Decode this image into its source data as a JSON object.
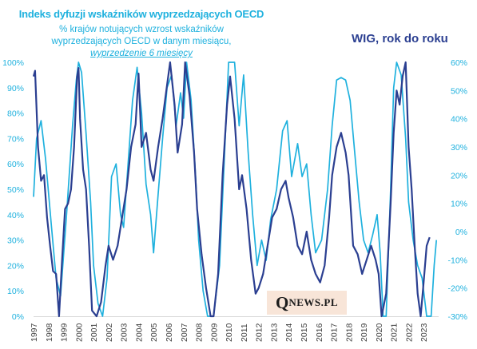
{
  "header": {
    "title_left": "Indeks dyfuzji wskaźników wyprzedzających OECD",
    "subtitle_line1": "% krajów notujących wzrost wskaźników",
    "subtitle_line2": "wyprzedzających OECD w danym miesiącu,",
    "subtitle_line3": "wyprzedzenie  6 miesięcy",
    "title_right": "WIG, rok do roku"
  },
  "watermark": {
    "big": "Q",
    "small": "NEWS.PL"
  },
  "colors": {
    "oecd": "#1fb1de",
    "wig": "#2b3f91",
    "left_axis": "#1fb1de",
    "right_axis": "#1fb1de",
    "watermark_bg": "#f8e5d8"
  },
  "chart_data": {
    "type": "line",
    "xlim": [
      1997.0,
      2024.0
    ],
    "ylim_left": [
      0,
      100
    ],
    "ylim_right": [
      -30,
      60
    ],
    "x_ticks": [
      "1997",
      "1998",
      "1999",
      "2000",
      "2001",
      "2002",
      "2003",
      "2004",
      "2005",
      "2006",
      "2007",
      "2008",
      "2009",
      "2010",
      "2011",
      "2012",
      "2013",
      "2014",
      "2015",
      "2016",
      "2017",
      "2018",
      "2019",
      "2020",
      "2021",
      "2022",
      "2023"
    ],
    "y_left_ticks": [
      "0%",
      "10%",
      "20%",
      "30%",
      "40%",
      "50%",
      "60%",
      "70%",
      "80%",
      "90%",
      "100%"
    ],
    "y_right_ticks": [
      "-30%",
      "-20%",
      "-10%",
      "0%",
      "10%",
      "20%",
      "30%",
      "40%",
      "50%",
      "60%"
    ],
    "grid": false,
    "series": [
      {
        "key": "oecd",
        "axis": "left",
        "points": [
          [
            1997.0,
            47
          ],
          [
            1997.2,
            70
          ],
          [
            1997.5,
            77
          ],
          [
            1997.8,
            62
          ],
          [
            1998.2,
            35
          ],
          [
            1998.5,
            15
          ],
          [
            1998.8,
            8
          ],
          [
            1999.2,
            40
          ],
          [
            1999.6,
            75
          ],
          [
            1999.85,
            93
          ],
          [
            2000.0,
            100
          ],
          [
            2000.2,
            96
          ],
          [
            2000.5,
            72
          ],
          [
            2000.8,
            45
          ],
          [
            2001.0,
            20
          ],
          [
            2001.3,
            5
          ],
          [
            2001.6,
            0
          ],
          [
            2001.9,
            15
          ],
          [
            2002.2,
            55
          ],
          [
            2002.5,
            60
          ],
          [
            2002.8,
            40
          ],
          [
            2003.0,
            35
          ],
          [
            2003.3,
            60
          ],
          [
            2003.6,
            85
          ],
          [
            2003.9,
            98
          ],
          [
            2004.2,
            80
          ],
          [
            2004.5,
            52
          ],
          [
            2004.8,
            40
          ],
          [
            2005.0,
            25
          ],
          [
            2005.3,
            48
          ],
          [
            2005.6,
            70
          ],
          [
            2005.9,
            90
          ],
          [
            2006.2,
            95
          ],
          [
            2006.5,
            75
          ],
          [
            2006.8,
            88
          ],
          [
            2007.0,
            78
          ],
          [
            2007.2,
            100
          ],
          [
            2007.5,
            85
          ],
          [
            2007.8,
            55
          ],
          [
            2008.0,
            30
          ],
          [
            2008.3,
            10
          ],
          [
            2008.6,
            0
          ],
          [
            2009.0,
            0
          ],
          [
            2009.4,
            20
          ],
          [
            2009.7,
            60
          ],
          [
            2010.0,
            100
          ],
          [
            2010.4,
            100
          ],
          [
            2010.7,
            75
          ],
          [
            2011.0,
            95
          ],
          [
            2011.3,
            65
          ],
          [
            2011.6,
            40
          ],
          [
            2011.9,
            20
          ],
          [
            2012.2,
            30
          ],
          [
            2012.5,
            22
          ],
          [
            2012.8,
            38
          ],
          [
            2013.2,
            50
          ],
          [
            2013.6,
            73
          ],
          [
            2013.9,
            77
          ],
          [
            2014.2,
            55
          ],
          [
            2014.6,
            68
          ],
          [
            2014.9,
            55
          ],
          [
            2015.2,
            60
          ],
          [
            2015.5,
            40
          ],
          [
            2015.8,
            25
          ],
          [
            2016.2,
            30
          ],
          [
            2016.6,
            50
          ],
          [
            2016.9,
            75
          ],
          [
            2017.2,
            93
          ],
          [
            2017.5,
            94
          ],
          [
            2017.8,
            93
          ],
          [
            2018.1,
            85
          ],
          [
            2018.4,
            65
          ],
          [
            2018.7,
            45
          ],
          [
            2019.0,
            30
          ],
          [
            2019.3,
            25
          ],
          [
            2019.6,
            32
          ],
          [
            2019.9,
            40
          ],
          [
            2020.1,
            25
          ],
          [
            2020.3,
            0
          ],
          [
            2020.5,
            0
          ],
          [
            2020.8,
            50
          ],
          [
            2021.0,
            90
          ],
          [
            2021.2,
            100
          ],
          [
            2021.5,
            95
          ],
          [
            2021.8,
            70
          ],
          [
            2022.0,
            45
          ],
          [
            2022.3,
            30
          ],
          [
            2022.6,
            20
          ],
          [
            2022.9,
            15
          ],
          [
            2023.2,
            0
          ],
          [
            2023.5,
            0
          ],
          [
            2023.7,
            20
          ],
          [
            2023.85,
            30
          ]
        ]
      },
      {
        "key": "wig",
        "axis": "right",
        "points": [
          [
            1997.0,
            55
          ],
          [
            1997.1,
            57
          ],
          [
            1997.3,
            30
          ],
          [
            1997.5,
            18
          ],
          [
            1997.7,
            20
          ],
          [
            1997.9,
            5
          ],
          [
            1998.1,
            -5
          ],
          [
            1998.3,
            -14
          ],
          [
            1998.5,
            -15
          ],
          [
            1998.7,
            -30
          ],
          [
            1998.9,
            -10
          ],
          [
            1999.1,
            8
          ],
          [
            1999.3,
            10
          ],
          [
            1999.5,
            15
          ],
          [
            1999.7,
            30
          ],
          [
            1999.9,
            55
          ],
          [
            2000.0,
            58
          ],
          [
            2000.1,
            40
          ],
          [
            2000.3,
            22
          ],
          [
            2000.5,
            15
          ],
          [
            2000.7,
            -5
          ],
          [
            2000.9,
            -28
          ],
          [
            2001.2,
            -30
          ],
          [
            2001.5,
            -25
          ],
          [
            2001.8,
            -12
          ],
          [
            2002.0,
            -5
          ],
          [
            2002.3,
            -10
          ],
          [
            2002.6,
            -5
          ],
          [
            2002.9,
            5
          ],
          [
            2003.2,
            15
          ],
          [
            2003.5,
            30
          ],
          [
            2003.8,
            38
          ],
          [
            2004.0,
            56
          ],
          [
            2004.2,
            30
          ],
          [
            2004.5,
            35
          ],
          [
            2004.8,
            22
          ],
          [
            2005.0,
            18
          ],
          [
            2005.3,
            30
          ],
          [
            2005.6,
            40
          ],
          [
            2005.9,
            52
          ],
          [
            2006.1,
            60
          ],
          [
            2006.4,
            45
          ],
          [
            2006.6,
            28
          ],
          [
            2006.9,
            38
          ],
          [
            2007.1,
            60
          ],
          [
            2007.4,
            48
          ],
          [
            2007.7,
            28
          ],
          [
            2007.9,
            8
          ],
          [
            2008.2,
            -8
          ],
          [
            2008.5,
            -20
          ],
          [
            2008.8,
            -30
          ],
          [
            2009.0,
            -30
          ],
          [
            2009.3,
            -15
          ],
          [
            2009.6,
            20
          ],
          [
            2009.9,
            45
          ],
          [
            2010.1,
            55
          ],
          [
            2010.4,
            40
          ],
          [
            2010.7,
            15
          ],
          [
            2010.9,
            20
          ],
          [
            2011.2,
            8
          ],
          [
            2011.5,
            -10
          ],
          [
            2011.8,
            -22
          ],
          [
            2012.0,
            -20
          ],
          [
            2012.3,
            -15
          ],
          [
            2012.6,
            -5
          ],
          [
            2012.9,
            5
          ],
          [
            2013.2,
            8
          ],
          [
            2013.5,
            15
          ],
          [
            2013.8,
            18
          ],
          [
            2014.0,
            12
          ],
          [
            2014.3,
            5
          ],
          [
            2014.6,
            -5
          ],
          [
            2014.9,
            -8
          ],
          [
            2015.2,
            0
          ],
          [
            2015.5,
            -10
          ],
          [
            2015.8,
            -15
          ],
          [
            2016.1,
            -18
          ],
          [
            2016.4,
            -12
          ],
          [
            2016.7,
            5
          ],
          [
            2016.9,
            20
          ],
          [
            2017.2,
            30
          ],
          [
            2017.5,
            35
          ],
          [
            2017.8,
            28
          ],
          [
            2018.0,
            20
          ],
          [
            2018.3,
            -5
          ],
          [
            2018.6,
            -8
          ],
          [
            2018.9,
            -15
          ],
          [
            2019.2,
            -10
          ],
          [
            2019.5,
            -5
          ],
          [
            2019.8,
            -10
          ],
          [
            2020.0,
            -15
          ],
          [
            2020.2,
            -30
          ],
          [
            2020.5,
            -22
          ],
          [
            2020.8,
            10
          ],
          [
            2021.0,
            35
          ],
          [
            2021.2,
            50
          ],
          [
            2021.4,
            45
          ],
          [
            2021.6,
            55
          ],
          [
            2021.8,
            60
          ],
          [
            2022.0,
            30
          ],
          [
            2022.2,
            15
          ],
          [
            2022.4,
            -5
          ],
          [
            2022.6,
            -22
          ],
          [
            2022.8,
            -30
          ],
          [
            2023.0,
            -18
          ],
          [
            2023.2,
            -5
          ],
          [
            2023.4,
            -2
          ]
        ]
      }
    ]
  }
}
